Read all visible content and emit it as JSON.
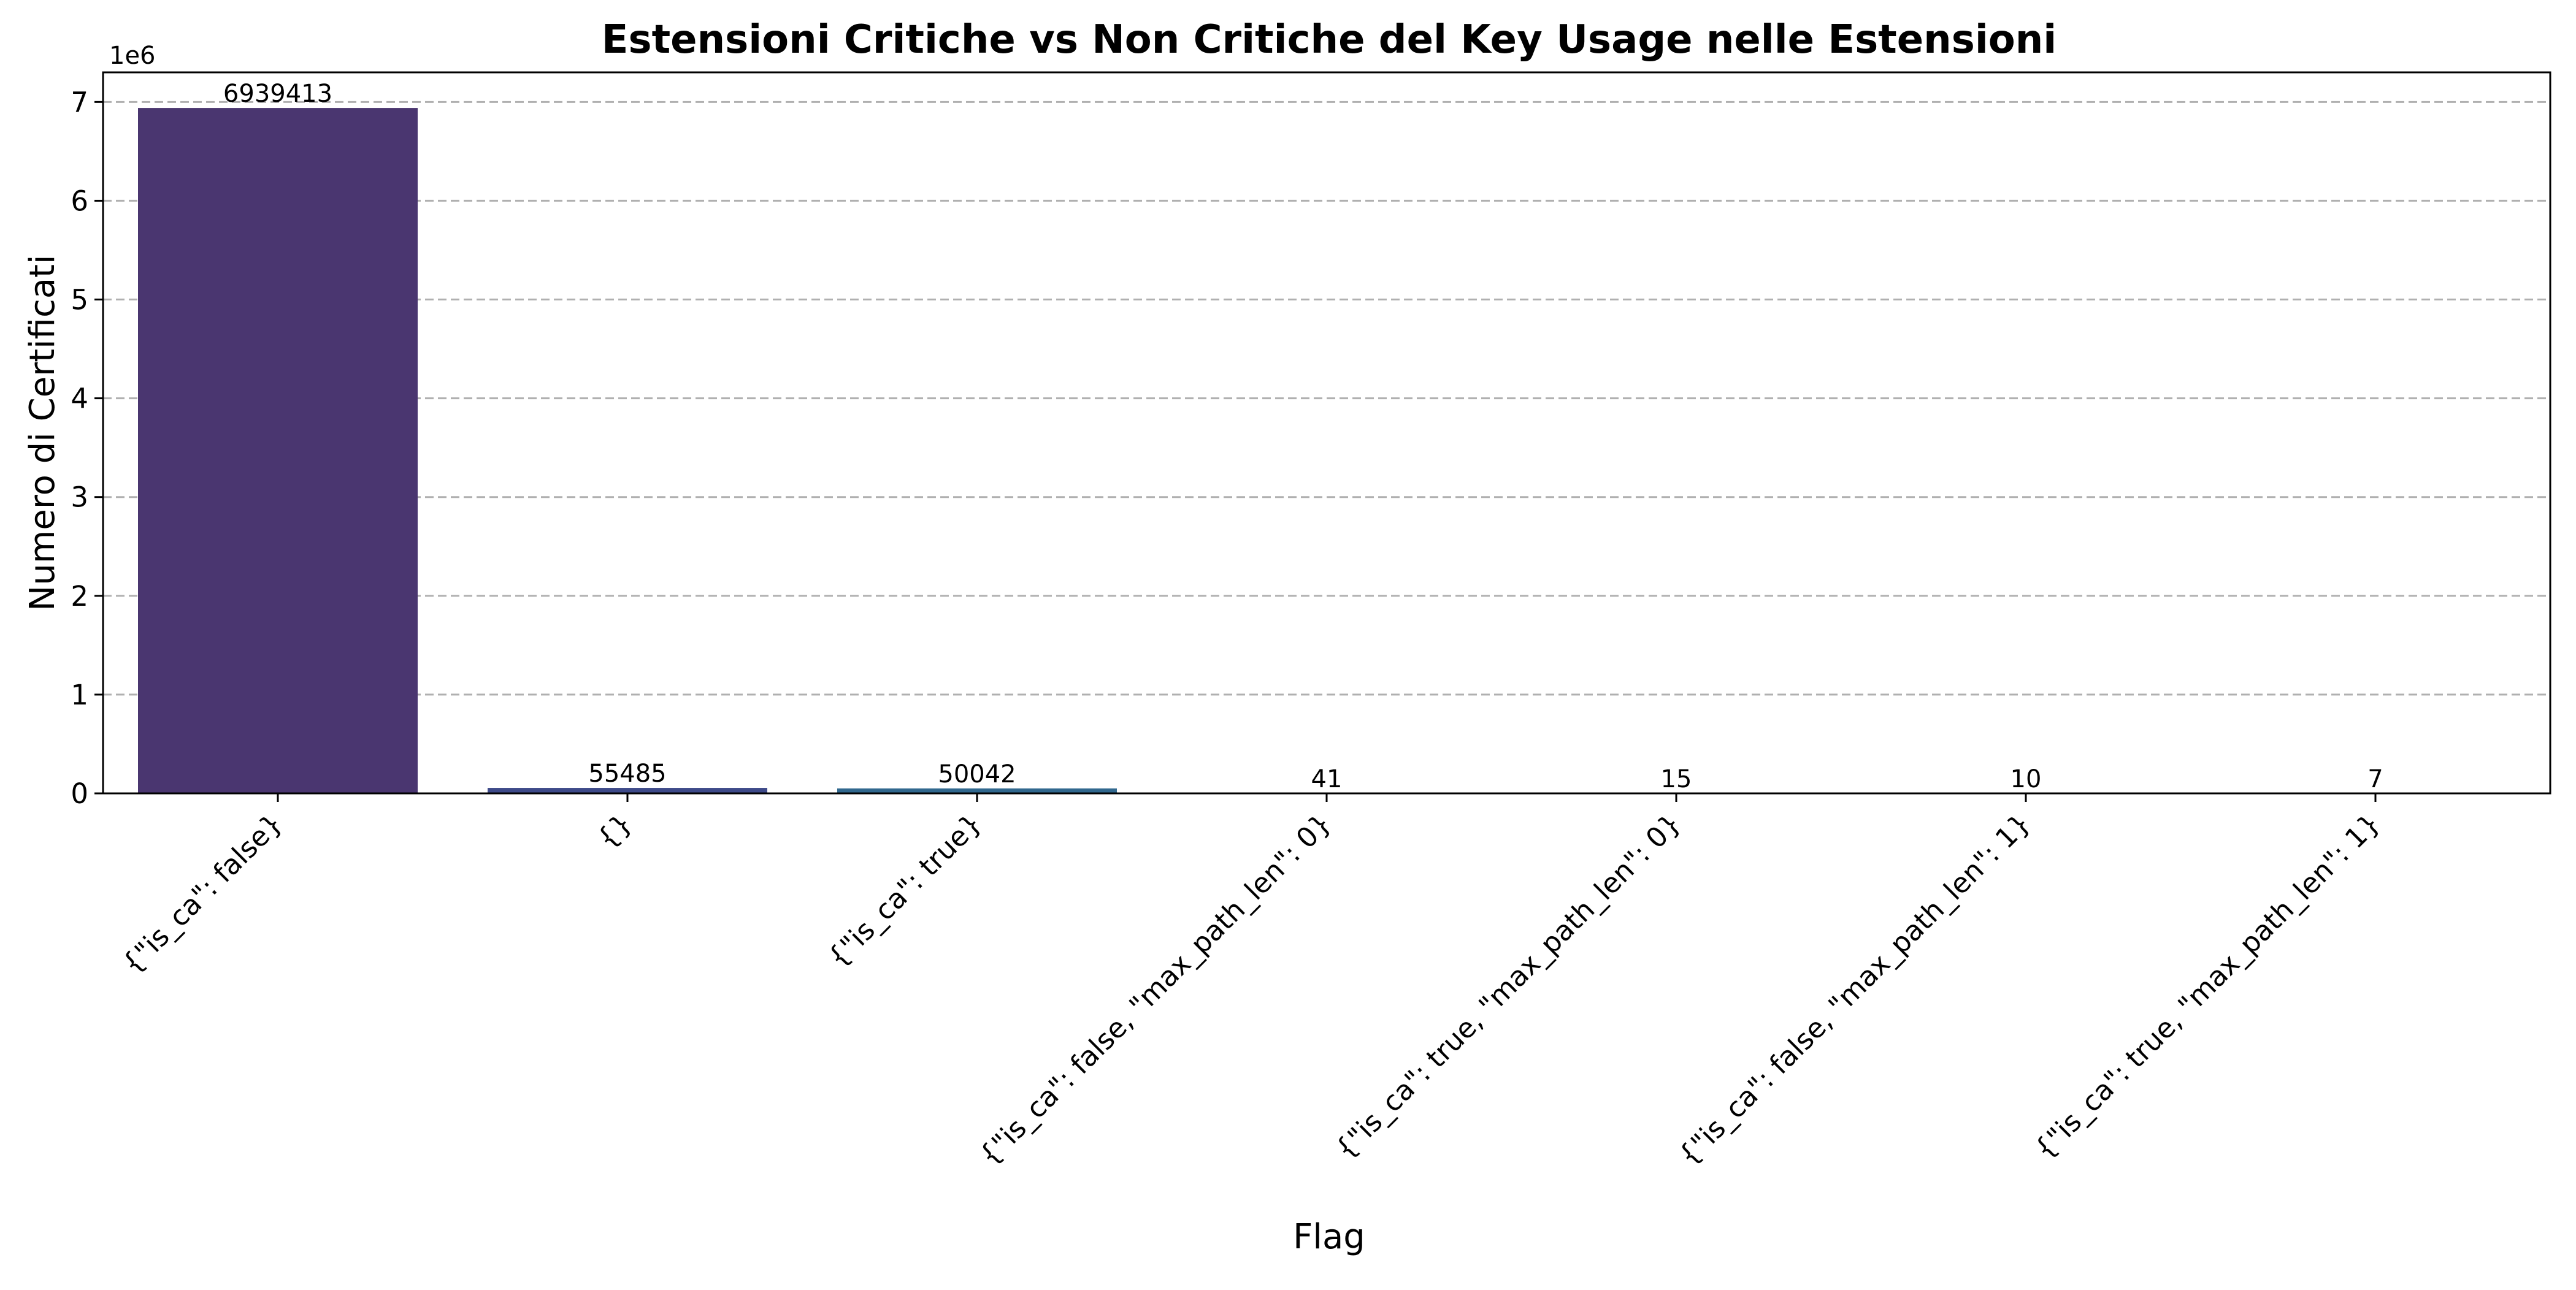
{
  "chart_data": {
    "type": "bar",
    "title": "Estensioni Critiche vs Non Critiche del Key Usage nelle Estensioni",
    "xlabel": "Flag",
    "ylabel": "Numero di Certificati",
    "y_offset_label": "1e6",
    "ylim": [
      0,
      7300000
    ],
    "yticks": [
      0,
      1000000,
      2000000,
      3000000,
      4000000,
      5000000,
      6000000,
      7000000
    ],
    "ytick_labels": [
      "0",
      "1",
      "2",
      "3",
      "4",
      "5",
      "6",
      "7"
    ],
    "grid": "y, dashed",
    "categories": [
      "{\"is_ca\": false}",
      "{}",
      "{\"is_ca\": true}",
      "{\"is_ca\": false, \"max_path_len\": 0}",
      "{\"is_ca\": true, \"max_path_len\": 0}",
      "{\"is_ca\": false, \"max_path_len\": 1}",
      "{\"is_ca\": true, \"max_path_len\": 1}"
    ],
    "values": [
      6939413,
      55485,
      50042,
      41,
      15,
      10,
      7
    ],
    "data_labels": [
      "6939413",
      "55485",
      "50042",
      "41",
      "15",
      "10",
      "7"
    ],
    "colors": [
      "#4a3670",
      "#3e4a89",
      "#31688e",
      "#26828e",
      "#1f9e89",
      "#35b779",
      "#6ece58"
    ]
  }
}
